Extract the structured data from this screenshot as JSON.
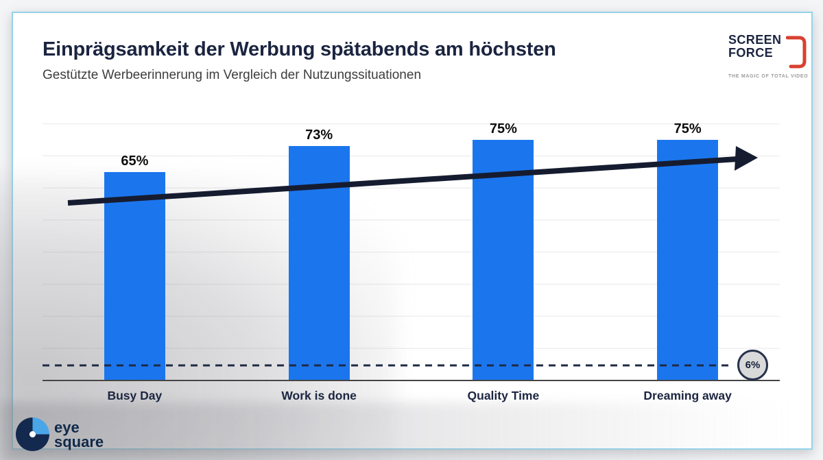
{
  "slide": {
    "title": "Einprägsamkeit der Werbung spätabends am höchsten",
    "subtitle": "Gestützte Werbeerinnerung im Vergleich der Nutzungssituationen"
  },
  "chart_data": {
    "type": "bar",
    "categories": [
      "Busy Day",
      "Work is done",
      "Quality Time",
      "Dreaming away"
    ],
    "values": [
      65,
      73,
      75,
      75
    ],
    "value_labels": [
      "65%",
      "73%",
      "75%",
      "75%"
    ],
    "title": "Einprägsamkeit der Werbung spätabends am höchsten",
    "xlabel": "",
    "ylabel": "",
    "ylim": [
      0,
      100
    ],
    "grid": "horizontal light-gray lines every 10%",
    "legend": "none",
    "bar_color": "#1b76ee",
    "trendline": {
      "description": "upward arrow across bars, left to right",
      "color": "#161c30"
    },
    "reference_line": {
      "value": 6,
      "label": "6%",
      "style": "dashed",
      "color": "#1e2a45"
    }
  },
  "logos": {
    "screenforce": {
      "line1": "SCREEN",
      "line2": "FORCE",
      "tagline": "THE MAGIC OF TOTAL VIDEO",
      "accent_color": "#d9402f",
      "text_color": "#1b2541"
    },
    "eyesquare": {
      "line1": "eye",
      "line2": "square",
      "text_color": "#10294a"
    }
  },
  "colors": {
    "slide_border": "#93d3ea",
    "title": "#1b2440",
    "subtitle": "#3d3d3d",
    "bar": "#1b76ee",
    "arrow": "#161c30",
    "axis": "#454545",
    "badge_fill": "#d9d9d9",
    "badge_border": "#28324c"
  }
}
